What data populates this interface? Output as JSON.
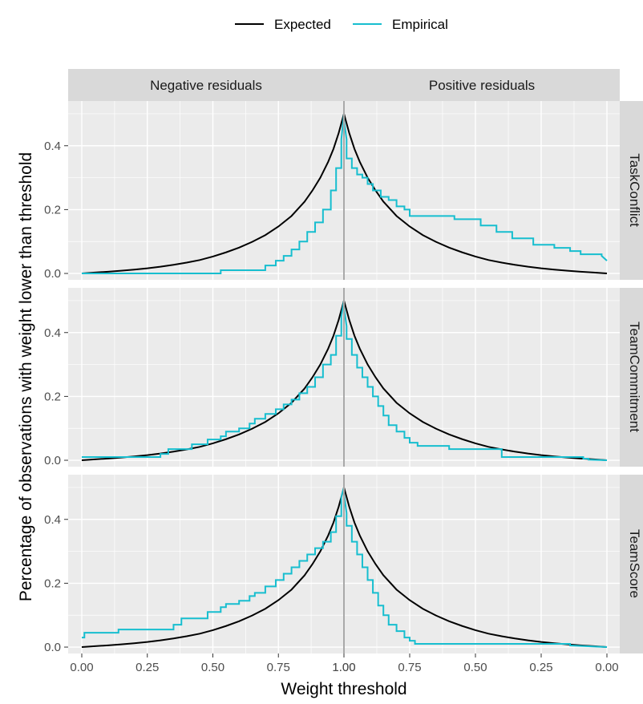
{
  "chart_data": {
    "type": "line",
    "title": "",
    "xlabel": "Weight threshold",
    "ylabel": "Percentage of observations with weight lower than threshold",
    "x_ticks": [
      "0.00",
      "0.25",
      "0.50",
      "0.75",
      "1.00",
      "1.00",
      "0.75",
      "0.50",
      "0.25",
      "0.00"
    ],
    "y_ticks": [
      "0.0",
      "0.2",
      "0.4"
    ],
    "ylim": [
      -0.02,
      0.54
    ],
    "column_facets": [
      "Negative residuals",
      "Positive residuals"
    ],
    "row_facets": [
      "TaskConflict",
      "TeamCommitment",
      "TeamScore"
    ],
    "legend": {
      "position": "top",
      "entries": [
        {
          "label": "Expected",
          "color": "#000000"
        },
        {
          "label": "Empirical",
          "color": "#17BECF"
        }
      ]
    },
    "grid": true,
    "reference_line": {
      "x": "1.00",
      "color": "#A9A9A9"
    },
    "expected_curve": {
      "x": [
        0.0,
        0.05,
        0.1,
        0.15,
        0.2,
        0.25,
        0.3,
        0.35,
        0.4,
        0.45,
        0.5,
        0.55,
        0.6,
        0.65,
        0.7,
        0.75,
        0.8,
        0.85,
        0.88,
        0.91,
        0.94,
        0.96,
        0.98,
        1.0
      ],
      "y": [
        0.0,
        0.0028,
        0.0055,
        0.0085,
        0.012,
        0.016,
        0.021,
        0.027,
        0.034,
        0.042,
        0.053,
        0.066,
        0.081,
        0.099,
        0.12,
        0.147,
        0.18,
        0.225,
        0.26,
        0.3,
        0.35,
        0.39,
        0.44,
        0.5
      ]
    },
    "panels": [
      {
        "row": "TaskConflict",
        "negative": {
          "x": [
            0.0,
            0.53,
            0.53,
            0.7,
            0.7,
            0.74,
            0.74,
            0.77,
            0.77,
            0.8,
            0.8,
            0.83,
            0.83,
            0.86,
            0.86,
            0.89,
            0.89,
            0.92,
            0.92,
            0.95,
            0.95,
            0.97,
            0.97,
            0.99,
            0.99,
            1.0
          ],
          "y": [
            0.0,
            0.0,
            0.01,
            0.01,
            0.025,
            0.025,
            0.04,
            0.04,
            0.055,
            0.055,
            0.075,
            0.075,
            0.1,
            0.1,
            0.13,
            0.13,
            0.16,
            0.16,
            0.2,
            0.2,
            0.26,
            0.26,
            0.33,
            0.33,
            0.42,
            0.5
          ]
        },
        "positive": {
          "x": [
            1.0,
            0.99,
            0.99,
            0.97,
            0.97,
            0.95,
            0.95,
            0.93,
            0.93,
            0.91,
            0.91,
            0.89,
            0.89,
            0.86,
            0.86,
            0.83,
            0.83,
            0.8,
            0.8,
            0.77,
            0.77,
            0.75,
            0.75,
            0.58,
            0.58,
            0.48,
            0.48,
            0.42,
            0.42,
            0.36,
            0.36,
            0.28,
            0.28,
            0.2,
            0.2,
            0.14,
            0.14,
            0.1,
            0.1,
            0.02,
            0.02,
            0.0
          ],
          "y": [
            0.48,
            0.42,
            0.36,
            0.36,
            0.33,
            0.33,
            0.31,
            0.31,
            0.3,
            0.3,
            0.28,
            0.28,
            0.26,
            0.26,
            0.24,
            0.24,
            0.23,
            0.23,
            0.21,
            0.21,
            0.2,
            0.2,
            0.18,
            0.18,
            0.17,
            0.17,
            0.15,
            0.15,
            0.13,
            0.13,
            0.11,
            0.11,
            0.09,
            0.09,
            0.08,
            0.08,
            0.07,
            0.07,
            0.06,
            0.06,
            0.055,
            0.04
          ]
        }
      },
      {
        "row": "TeamCommitment",
        "negative": {
          "x": [
            0.0,
            0.3,
            0.3,
            0.33,
            0.33,
            0.42,
            0.42,
            0.48,
            0.48,
            0.53,
            0.53,
            0.55,
            0.55,
            0.6,
            0.6,
            0.64,
            0.64,
            0.66,
            0.66,
            0.7,
            0.7,
            0.74,
            0.74,
            0.77,
            0.77,
            0.8,
            0.8,
            0.83,
            0.83,
            0.86,
            0.86,
            0.89,
            0.89,
            0.92,
            0.92,
            0.95,
            0.95,
            0.97,
            0.97,
            0.99,
            0.99,
            1.0
          ],
          "y": [
            0.01,
            0.01,
            0.02,
            0.02,
            0.035,
            0.035,
            0.05,
            0.05,
            0.065,
            0.065,
            0.075,
            0.075,
            0.09,
            0.09,
            0.1,
            0.1,
            0.115,
            0.115,
            0.13,
            0.13,
            0.145,
            0.145,
            0.16,
            0.16,
            0.175,
            0.175,
            0.19,
            0.19,
            0.21,
            0.21,
            0.23,
            0.23,
            0.26,
            0.26,
            0.3,
            0.3,
            0.33,
            0.33,
            0.39,
            0.39,
            0.45,
            0.5
          ]
        },
        "positive": {
          "x": [
            1.0,
            0.99,
            0.99,
            0.97,
            0.97,
            0.95,
            0.95,
            0.93,
            0.93,
            0.91,
            0.91,
            0.89,
            0.89,
            0.87,
            0.87,
            0.85,
            0.85,
            0.83,
            0.83,
            0.8,
            0.8,
            0.77,
            0.77,
            0.75,
            0.75,
            0.72,
            0.72,
            0.6,
            0.6,
            0.4,
            0.4,
            0.09,
            0.09,
            0.07,
            0.07,
            0.0
          ],
          "y": [
            0.48,
            0.42,
            0.38,
            0.38,
            0.33,
            0.33,
            0.29,
            0.29,
            0.26,
            0.26,
            0.23,
            0.23,
            0.2,
            0.2,
            0.17,
            0.17,
            0.14,
            0.14,
            0.11,
            0.11,
            0.09,
            0.09,
            0.07,
            0.07,
            0.055,
            0.055,
            0.045,
            0.045,
            0.035,
            0.035,
            0.01,
            0.01,
            0.005,
            0.005,
            0.002,
            0.0
          ]
        }
      },
      {
        "row": "TeamScore",
        "negative": {
          "x": [
            0.0,
            0.01,
            0.01,
            0.14,
            0.14,
            0.35,
            0.35,
            0.38,
            0.38,
            0.48,
            0.48,
            0.53,
            0.53,
            0.55,
            0.55,
            0.6,
            0.6,
            0.64,
            0.64,
            0.66,
            0.66,
            0.7,
            0.7,
            0.74,
            0.74,
            0.77,
            0.77,
            0.8,
            0.8,
            0.83,
            0.83,
            0.86,
            0.86,
            0.89,
            0.89,
            0.92,
            0.92,
            0.95,
            0.95,
            0.97,
            0.97,
            0.99,
            0.99,
            1.0
          ],
          "y": [
            0.03,
            0.03,
            0.045,
            0.045,
            0.055,
            0.055,
            0.07,
            0.07,
            0.09,
            0.09,
            0.11,
            0.11,
            0.125,
            0.125,
            0.135,
            0.135,
            0.145,
            0.145,
            0.16,
            0.16,
            0.17,
            0.17,
            0.19,
            0.19,
            0.21,
            0.21,
            0.23,
            0.23,
            0.25,
            0.25,
            0.27,
            0.27,
            0.29,
            0.29,
            0.31,
            0.31,
            0.33,
            0.33,
            0.36,
            0.36,
            0.41,
            0.41,
            0.47,
            0.5
          ]
        },
        "positive": {
          "x": [
            1.0,
            0.99,
            0.99,
            0.97,
            0.97,
            0.95,
            0.95,
            0.93,
            0.93,
            0.91,
            0.91,
            0.89,
            0.89,
            0.87,
            0.87,
            0.85,
            0.85,
            0.83,
            0.83,
            0.8,
            0.8,
            0.77,
            0.77,
            0.75,
            0.75,
            0.73,
            0.73,
            0.14,
            0.14,
            0.0
          ],
          "y": [
            0.48,
            0.42,
            0.38,
            0.38,
            0.33,
            0.33,
            0.29,
            0.29,
            0.25,
            0.25,
            0.21,
            0.21,
            0.17,
            0.17,
            0.13,
            0.13,
            0.1,
            0.1,
            0.07,
            0.07,
            0.05,
            0.05,
            0.03,
            0.03,
            0.02,
            0.02,
            0.01,
            0.01,
            0.005,
            0.0
          ]
        }
      }
    ]
  }
}
